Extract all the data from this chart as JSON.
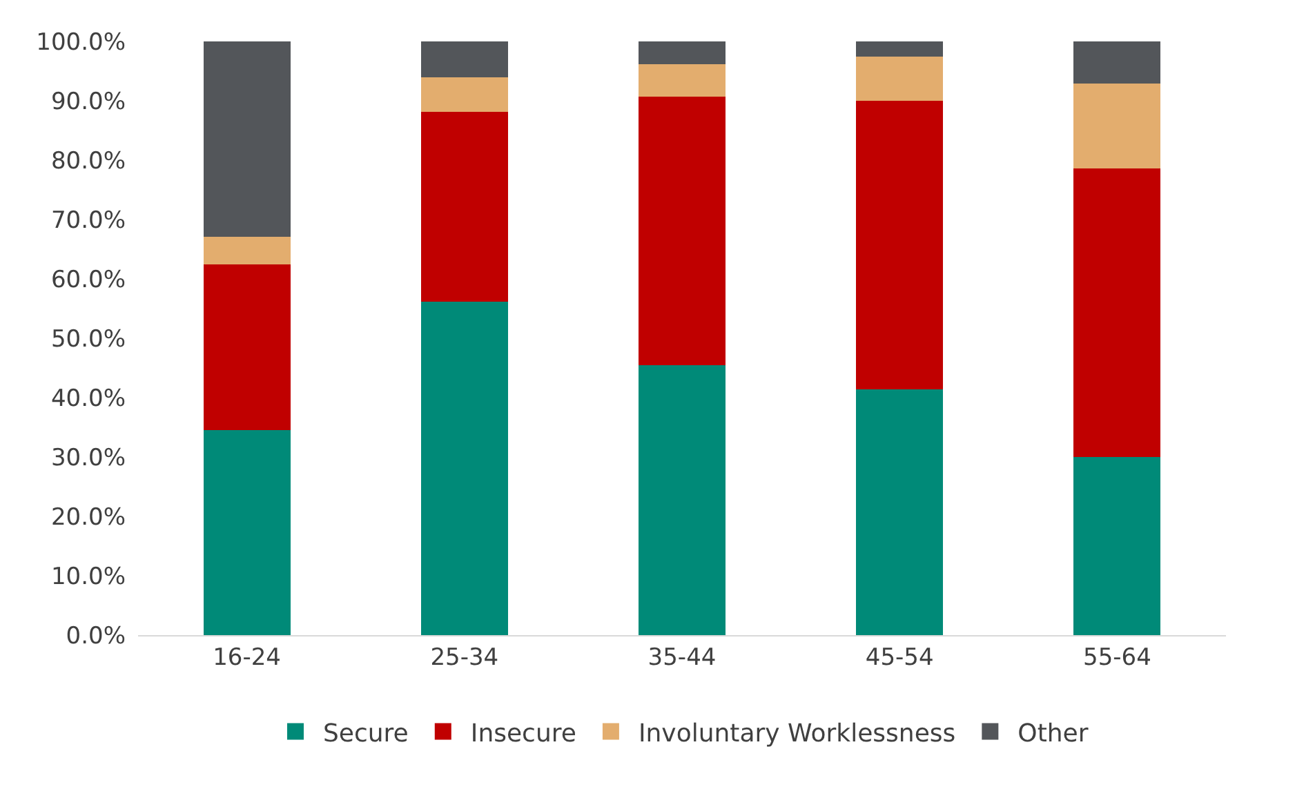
{
  "chart_data": {
    "type": "bar",
    "stacked": true,
    "categories": [
      "16-24",
      "25-34",
      "35-44",
      "45-54",
      "55-64"
    ],
    "series": [
      {
        "name": "Secure",
        "color": "#008a78",
        "values": [
          34.5,
          56.2,
          45.5,
          41.4,
          30.0
        ]
      },
      {
        "name": "Insecure",
        "color": "#c00000",
        "values": [
          27.9,
          31.9,
          45.2,
          48.6,
          48.6
        ]
      },
      {
        "name": "Involuntary Worklessness",
        "color": "#e3ad6e",
        "values": [
          4.7,
          5.9,
          5.5,
          7.4,
          14.3
        ]
      },
      {
        "name": "Other",
        "color": "#53565a",
        "values": [
          32.9,
          6.0,
          3.8,
          2.6,
          7.1
        ]
      }
    ],
    "ylim": [
      0,
      100
    ],
    "yticks": [
      {
        "value": 0,
        "label": "0.0%"
      },
      {
        "value": 10,
        "label": "10.0%"
      },
      {
        "value": 20,
        "label": "20.0%"
      },
      {
        "value": 30,
        "label": "30.0%"
      },
      {
        "value": 40,
        "label": "40.0%"
      },
      {
        "value": 50,
        "label": "50.0%"
      },
      {
        "value": 60,
        "label": "60.0%"
      },
      {
        "value": 70,
        "label": "70.0%"
      },
      {
        "value": 80,
        "label": "80.0%"
      },
      {
        "value": 90,
        "label": "90.0%"
      },
      {
        "value": 100,
        "label": "100.0%"
      }
    ],
    "grid": false,
    "legend": "bottom"
  }
}
